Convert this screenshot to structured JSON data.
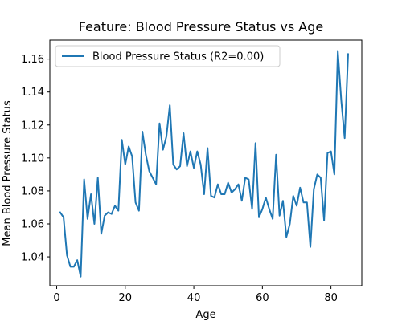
{
  "chart_data": {
    "type": "line",
    "title": "Feature: Blood Pressure Status vs Age",
    "xlabel": "Age",
    "ylabel": "Mean Blood Pressure Status",
    "xlim": [
      -2,
      89
    ],
    "ylim": [
      1.0225,
      1.1715
    ],
    "xticks": [
      0,
      20,
      40,
      60,
      80
    ],
    "xtick_labels": [
      "0",
      "20",
      "40",
      "60",
      "80"
    ],
    "yticks": [
      1.04,
      1.06,
      1.08,
      1.1,
      1.12,
      1.14,
      1.16
    ],
    "ytick_labels": [
      "1.04",
      "1.06",
      "1.08",
      "1.10",
      "1.12",
      "1.14",
      "1.16"
    ],
    "grid": false,
    "legend_position": "upper-left",
    "series": [
      {
        "name": "Blood Pressure Status (R2=0.00)",
        "color": "#1f77b4",
        "x": [
          1,
          2,
          3,
          4,
          5,
          6,
          7,
          8,
          9,
          10,
          11,
          12,
          13,
          14,
          15,
          16,
          17,
          18,
          19,
          20,
          21,
          22,
          23,
          24,
          25,
          26,
          27,
          28,
          29,
          30,
          31,
          32,
          33,
          34,
          35,
          36,
          37,
          38,
          39,
          40,
          41,
          42,
          43,
          44,
          45,
          46,
          47,
          48,
          49,
          50,
          51,
          52,
          53,
          54,
          55,
          56,
          57,
          58,
          59,
          60,
          61,
          62,
          63,
          64,
          65,
          66,
          67,
          68,
          69,
          70,
          71,
          72,
          73,
          74,
          75,
          76,
          77,
          78,
          79,
          80,
          81,
          82,
          83,
          84,
          85
        ],
        "y": [
          1.067,
          1.064,
          1.041,
          1.034,
          1.034,
          1.038,
          1.028,
          1.087,
          1.063,
          1.078,
          1.06,
          1.088,
          1.054,
          1.065,
          1.067,
          1.066,
          1.071,
          1.068,
          1.111,
          1.096,
          1.107,
          1.101,
          1.073,
          1.068,
          1.116,
          1.102,
          1.092,
          1.088,
          1.084,
          1.121,
          1.105,
          1.113,
          1.132,
          1.096,
          1.093,
          1.095,
          1.115,
          1.095,
          1.104,
          1.094,
          1.104,
          1.096,
          1.078,
          1.106,
          1.077,
          1.076,
          1.084,
          1.078,
          1.078,
          1.085,
          1.079,
          1.081,
          1.084,
          1.074,
          1.088,
          1.087,
          1.069,
          1.109,
          1.064,
          1.069,
          1.076,
          1.069,
          1.063,
          1.102,
          1.065,
          1.074,
          1.052,
          1.06,
          1.077,
          1.071,
          1.082,
          1.073,
          1.073,
          1.046,
          1.081,
          1.09,
          1.088,
          1.062,
          1.103,
          1.104,
          1.09,
          1.165,
          1.135,
          1.112,
          1.163
        ]
      }
    ]
  }
}
